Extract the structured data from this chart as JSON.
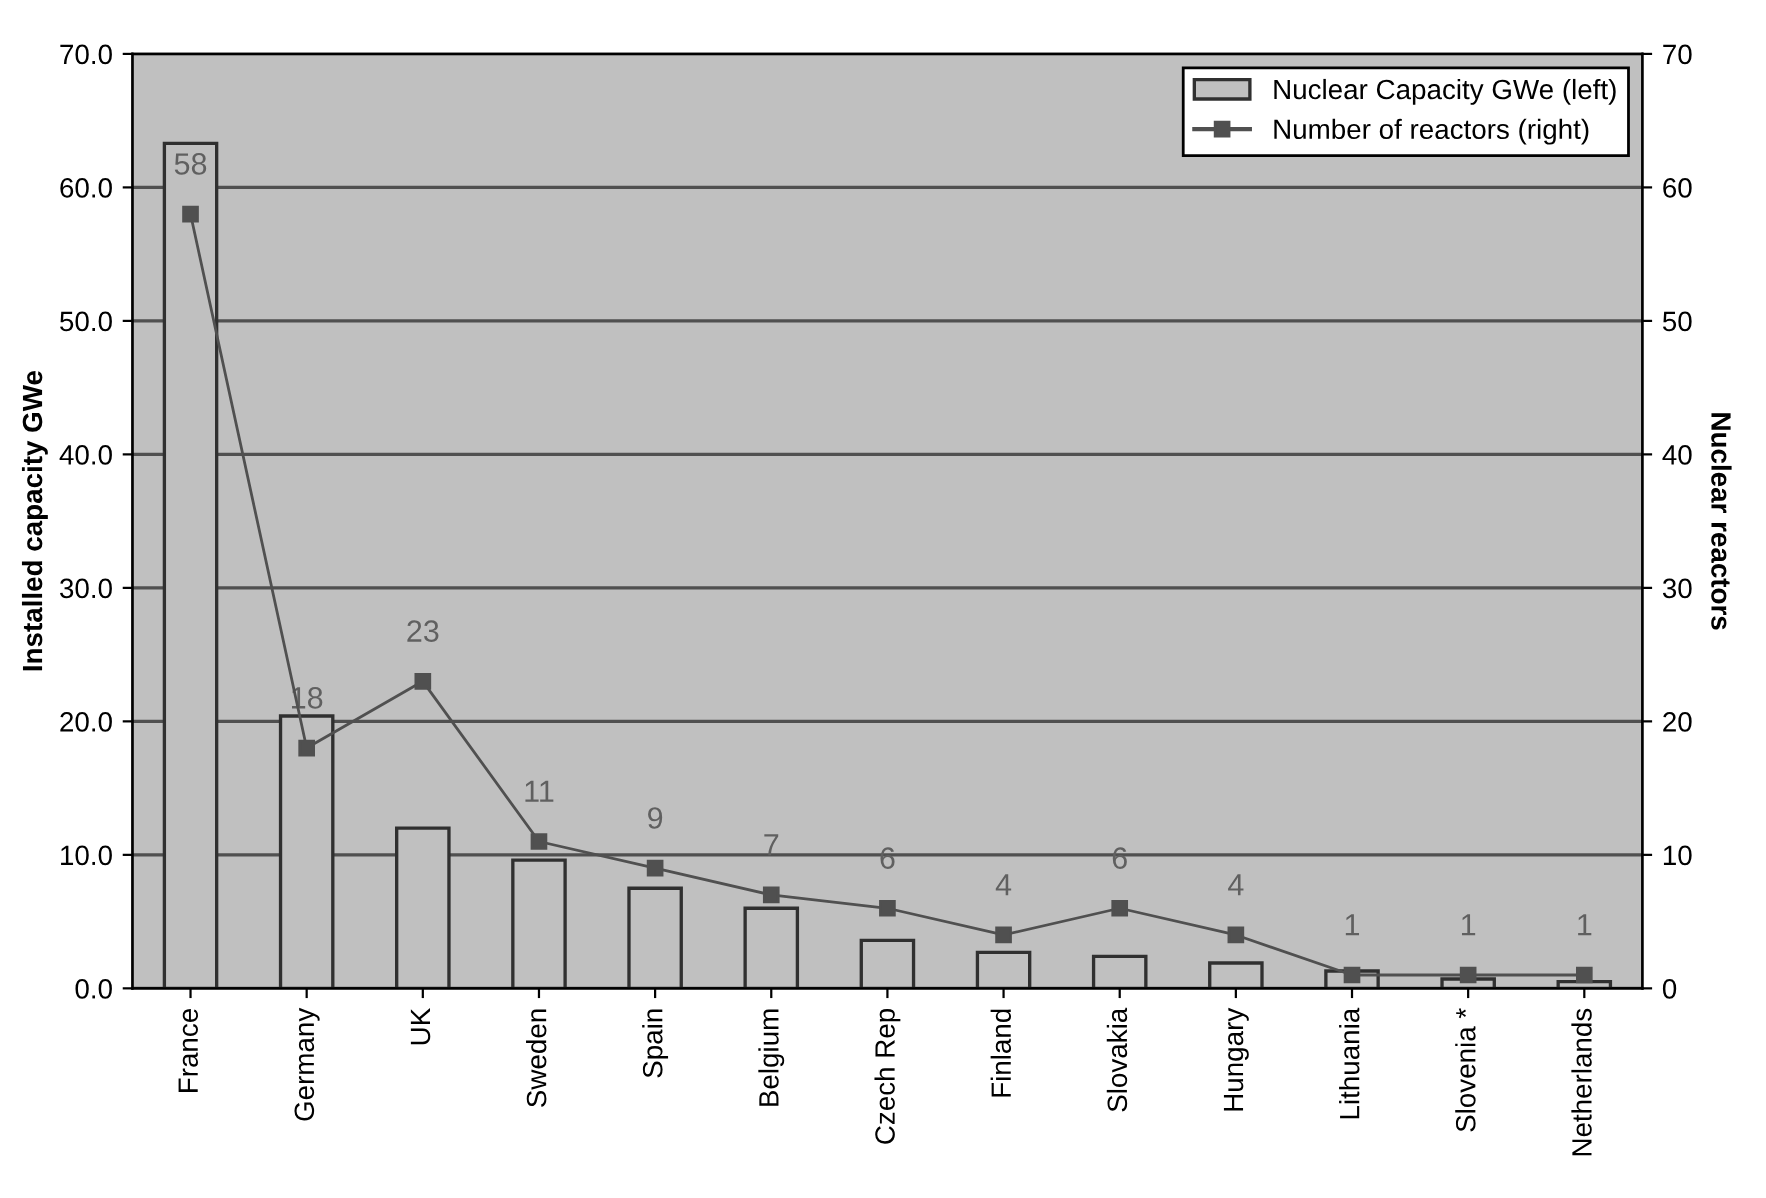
{
  "chart_data": {
    "type": "bar",
    "categories": [
      "France",
      "Germany",
      "UK",
      "Sweden",
      "Spain",
      "Belgium",
      "Czech Rep",
      "Finland",
      "Slovakia",
      "Hungary",
      "Lithuania",
      "Slovenia *",
      "Netherlands"
    ],
    "series": [
      {
        "name": "Nuclear Capacity GWe (left)",
        "color": "#c0c0c0",
        "values": [
          63.3,
          20.4,
          12.0,
          9.6,
          7.5,
          6.0,
          3.6,
          2.7,
          2.4,
          1.9,
          1.3,
          0.7,
          0.5
        ]
      },
      {
        "name": "Number of reactors (right)",
        "type": "line",
        "axis": "y2",
        "color": "#505050",
        "data_labels": true,
        "values": [
          58,
          18,
          23,
          11,
          9,
          7,
          6,
          4,
          6,
          4,
          1,
          1,
          1
        ]
      }
    ],
    "ylabel": "Installed capacity GWe",
    "y2label": "Nuclear reactors",
    "ylim": [
      0,
      70
    ],
    "yticks": [
      {
        "value": 0,
        "label": "0.0"
      },
      {
        "value": 10,
        "label": "10.0"
      },
      {
        "value": 20,
        "label": "20.0"
      },
      {
        "value": 30,
        "label": "30.0"
      },
      {
        "value": 40,
        "label": "40.0"
      },
      {
        "value": 50,
        "label": "50.0"
      },
      {
        "value": 60,
        "label": "60.0"
      },
      {
        "value": 70,
        "label": "70.0"
      }
    ],
    "y2lim": [
      0,
      70
    ],
    "y2ticks": [
      0,
      10,
      20,
      30,
      40,
      50,
      60,
      70
    ],
    "grid": "y",
    "legend": "top right",
    "marker": "square",
    "line_style": "solid"
  }
}
